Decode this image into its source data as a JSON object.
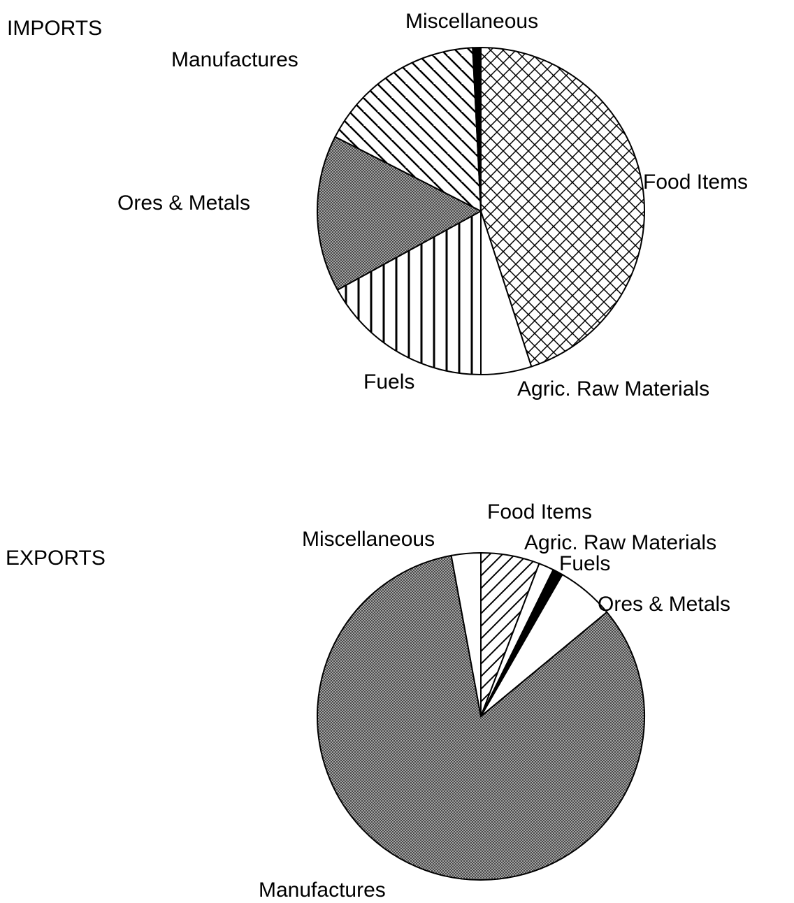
{
  "chart_data": [
    {
      "type": "pie",
      "title": "IMPORTS",
      "categories": [
        "Food Items",
        "Agric. Raw Materials",
        "Fuels",
        "Ores & Metals",
        "Manufactures",
        "Miscellaneous"
      ],
      "values": [
        45,
        5,
        17,
        15.5,
        16.7,
        0.8
      ],
      "fills": [
        "crosshatch",
        "white",
        "vertical",
        "dense",
        "backdiagonal",
        "black"
      ]
    },
    {
      "type": "pie",
      "title": "EXPORTS",
      "categories": [
        "Food Items",
        "Agric. Raw Materials",
        "Fuels",
        "Ores & Metals",
        "Manufactures",
        "Miscellaneous"
      ],
      "values": [
        5.8,
        1.5,
        1,
        5.7,
        83.1,
        2.9
      ],
      "fills": [
        "diagonal",
        "white",
        "black",
        "white",
        "dense",
        "white"
      ]
    }
  ]
}
